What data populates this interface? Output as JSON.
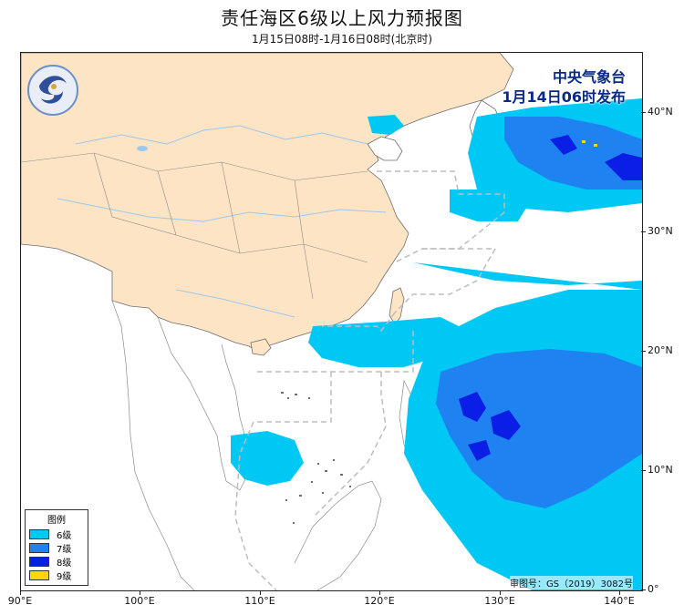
{
  "title": "责任海区6级以上风力预报图",
  "subtitle": "1月15日08时-1月16日08时(北京时)",
  "issuer": {
    "line1": "中央气象台",
    "line2": "1月14日06时发布"
  },
  "logo": {
    "icon": "cma-logo-icon"
  },
  "legend": {
    "title": "图例",
    "items": [
      {
        "label": "6级",
        "color": "#00c8f5"
      },
      {
        "label": "7级",
        "color": "#1e82f0"
      },
      {
        "label": "8级",
        "color": "#0a1ee6"
      },
      {
        "label": "9级",
        "color": "#ffd700"
      }
    ]
  },
  "approval": "审图号：GS（2019）3082号",
  "axes": {
    "lon_ticks": [
      "90°E",
      "100°E",
      "110°E",
      "120°E",
      "130°E",
      "140°E"
    ],
    "lat_ticks": [
      "40°N",
      "30°N",
      "20°N",
      "10°N",
      "0°"
    ]
  },
  "colors": {
    "land": "#fde4c4",
    "sea": "#ffffff",
    "river": "#9cc8ee",
    "border": "#6e6e6e",
    "zone_line": "#bdbdbd"
  }
}
